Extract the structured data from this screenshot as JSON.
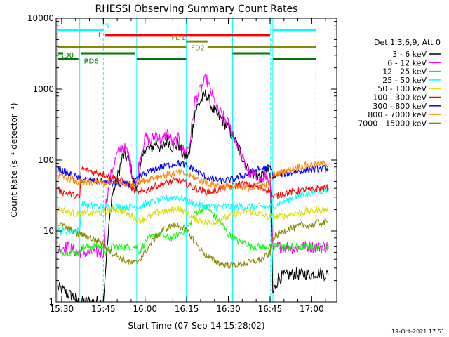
{
  "chart_data": {
    "type": "line",
    "title": "RHESSI Observing Summary Count Rates",
    "xlabel": "Start Time (07-Sep-14 15:28:02)",
    "ylabel": "Count Rate (s⁻¹ detector⁻¹)",
    "y_scale": "log",
    "ylim": [
      1,
      10000
    ],
    "xlim": [
      0,
      101
    ],
    "x_units": "minutes after 15:28:02",
    "x_ticks": [
      {
        "t": 2,
        "label": "15:30"
      },
      {
        "t": 17,
        "label": "15:45"
      },
      {
        "t": 32,
        "label": "16:00"
      },
      {
        "t": 47,
        "label": "16:15"
      },
      {
        "t": 62,
        "label": "16:30"
      },
      {
        "t": 77,
        "label": "16:45"
      },
      {
        "t": 92,
        "label": "17:00"
      }
    ],
    "y_ticks": [
      {
        "v": 1,
        "label": "1"
      },
      {
        "v": 10,
        "label": "10"
      },
      {
        "v": 100,
        "label": "100"
      },
      {
        "v": 1000,
        "label": "1000"
      },
      {
        "v": 10000,
        "label": "10000"
      }
    ],
    "legend": {
      "title": "Det 1,3,6,9, Att 0",
      "placement": "right",
      "entries": [
        {
          "label": "3 - 6 keV",
          "color": "#000000"
        },
        {
          "label": "6 - 12 keV",
          "color": "#ff00ff"
        },
        {
          "label": "12 - 25 keV",
          "color": "#00ff00"
        },
        {
          "label": "25 - 50 keV",
          "color": "#00ffff"
        },
        {
          "label": "50 - 100 keV",
          "color": "#dddd00"
        },
        {
          "label": "100 - 300 keV",
          "color": "#ff0000"
        },
        {
          "label": "300 - 800 keV",
          "color": "#0000ff"
        },
        {
          "label": "800 - 7000 keV",
          "color": "#ff8800"
        },
        {
          "label": "7000 - 15000 keV",
          "color": "#888800"
        }
      ]
    },
    "series": [
      {
        "name": "3 - 6 keV",
        "color": "#000000",
        "x": [
          0.5,
          2,
          4,
          6,
          8,
          8.5,
          9,
          12,
          16,
          17,
          18,
          20,
          22,
          24,
          26,
          28,
          29,
          30,
          32,
          34,
          36,
          38,
          40,
          42,
          44,
          46,
          48,
          50,
          52,
          54,
          56,
          58,
          60,
          62,
          64,
          66,
          68,
          70,
          72,
          74,
          76,
          77,
          78,
          80,
          82,
          84,
          86,
          88,
          90,
          92,
          94,
          96,
          98
        ],
        "y": [
          1.6,
          1.5,
          1.3,
          1.2,
          1.0,
          1.0,
          1.0,
          1.0,
          1.0,
          1.0,
          4,
          30,
          55,
          115,
          105,
          50,
          38,
          65,
          150,
          140,
          180,
          140,
          195,
          150,
          170,
          110,
          120,
          500,
          680,
          870,
          560,
          420,
          360,
          280,
          200,
          140,
          90,
          66,
          62,
          58,
          70,
          60,
          1.3,
          2.2,
          2.3,
          2.4,
          2.5,
          2.4,
          2.5,
          2.4,
          2.6,
          2.5,
          2.4
        ]
      },
      {
        "name": "6 - 12 keV",
        "color": "#ff00ff",
        "x": [
          0.5,
          2,
          4,
          6,
          8,
          8.5,
          9,
          12,
          16,
          17,
          18,
          20,
          22,
          24,
          26,
          28,
          29,
          30,
          32,
          34,
          36,
          38,
          40,
          42,
          44,
          46,
          48,
          50,
          52,
          54,
          56,
          58,
          60,
          62,
          64,
          66,
          68,
          70,
          72,
          74,
          76,
          77,
          78,
          80,
          82,
          84,
          86,
          88,
          90,
          92,
          94,
          96,
          98
        ],
        "y": [
          5.5,
          6,
          6,
          5.5,
          5,
          5.2,
          5,
          5,
          5,
          5,
          25,
          70,
          120,
          160,
          120,
          50,
          45,
          100,
          210,
          180,
          240,
          180,
          250,
          170,
          200,
          130,
          160,
          700,
          1000,
          1400,
          860,
          520,
          420,
          320,
          220,
          140,
          85,
          62,
          58,
          52,
          60,
          50,
          5.5,
          6,
          6,
          6,
          5.5,
          6,
          6,
          6,
          6,
          6,
          6
        ]
      },
      {
        "name": "12 - 25 keV",
        "color": "#00ff00",
        "x": [
          0.5,
          2,
          4,
          6,
          8,
          8.5,
          9,
          12,
          16,
          18,
          20,
          22,
          24,
          26,
          28,
          29,
          30,
          32,
          34,
          36,
          38,
          40,
          42,
          44,
          46,
          48,
          50,
          52,
          54,
          56,
          58,
          60,
          62,
          64,
          66,
          68,
          70,
          72,
          74,
          76,
          77,
          78,
          80,
          82,
          84,
          86,
          88,
          90,
          92,
          94,
          96,
          98
        ],
        "y": [
          5,
          5,
          5,
          5,
          5,
          5,
          6,
          6,
          6,
          5,
          6,
          6,
          6,
          6,
          6,
          6,
          5,
          7,
          8,
          9,
          9,
          8,
          8,
          9,
          10,
          12,
          18,
          20,
          22,
          18,
          15,
          12,
          9,
          8,
          7,
          7,
          6,
          6,
          6,
          6,
          6,
          6,
          6,
          6,
          6,
          6,
          6,
          6,
          6,
          6,
          6,
          6
        ]
      },
      {
        "name": "25 - 50 keV",
        "color": "#00ffff",
        "x": [
          0.5,
          2,
          4,
          6,
          8,
          8.5,
          9,
          12,
          16,
          18,
          20,
          22,
          24,
          26,
          28,
          29,
          30,
          32,
          34,
          36,
          38,
          40,
          42,
          44,
          46,
          48,
          50,
          52,
          54,
          56,
          58,
          60,
          62,
          64,
          66,
          68,
          70,
          72,
          74,
          76,
          77,
          78,
          80,
          82,
          84,
          86,
          88,
          90,
          92,
          94,
          96,
          98
        ],
        "y": [
          10,
          10,
          10,
          10,
          10,
          10,
          24,
          23,
          22,
          22,
          22,
          22,
          22,
          22,
          22,
          22,
          22,
          24,
          25,
          27,
          28,
          29,
          30,
          30,
          28,
          26,
          24,
          23,
          22,
          22,
          22,
          22,
          22,
          22,
          22,
          22,
          22,
          22,
          22,
          22,
          22,
          22,
          24,
          26,
          28,
          30,
          32,
          33,
          35,
          36,
          37,
          37
        ]
      },
      {
        "name": "50 - 100 keV",
        "color": "#dddd00",
        "x": [
          0.5,
          2,
          4,
          6,
          8,
          8.5,
          9,
          12,
          16,
          18,
          20,
          22,
          24,
          26,
          28,
          29,
          30,
          32,
          34,
          36,
          38,
          40,
          42,
          44,
          46,
          48,
          50,
          52,
          54,
          56,
          58,
          60,
          62,
          64,
          66,
          68,
          70,
          72,
          74,
          76,
          77,
          78,
          80,
          82,
          84,
          86,
          88,
          90,
          92,
          94,
          96,
          98
        ],
        "y": [
          21,
          20,
          19,
          18,
          17,
          17,
          17,
          18,
          18,
          19,
          20,
          20,
          19,
          17,
          16,
          14,
          14,
          15,
          16,
          18,
          19,
          19,
          20,
          21,
          19,
          17,
          15,
          14,
          13,
          13,
          14,
          15,
          16,
          17,
          18,
          19,
          19,
          18,
          17,
          16,
          16,
          16,
          16,
          16,
          17,
          18,
          18,
          19,
          19,
          20,
          20,
          20
        ]
      },
      {
        "name": "100 - 300 keV",
        "color": "#ff0000",
        "x": [
          0.5,
          2,
          4,
          6,
          8,
          8.5,
          9,
          12,
          16,
          18,
          20,
          22,
          24,
          26,
          28,
          29,
          30,
          32,
          34,
          36,
          38,
          40,
          42,
          44,
          46,
          48,
          50,
          52,
          54,
          56,
          58,
          60,
          62,
          64,
          66,
          68,
          70,
          72,
          74,
          76,
          77,
          78,
          80,
          82,
          84,
          86,
          88,
          90,
          92,
          94,
          96,
          98
        ],
        "y": [
          38,
          36,
          34,
          32,
          30,
          30,
          75,
          70,
          65,
          62,
          58,
          54,
          50,
          44,
          38,
          36,
          34,
          37,
          40,
          44,
          46,
          48,
          50,
          52,
          48,
          44,
          40,
          38,
          36,
          36,
          38,
          40,
          42,
          44,
          46,
          46,
          44,
          42,
          40,
          38,
          38,
          30,
          32,
          34,
          35,
          36,
          37,
          38,
          38,
          40,
          40,
          40
        ]
      },
      {
        "name": "300 - 800 keV",
        "color": "#0000ff",
        "x": [
          0.5,
          2,
          4,
          6,
          8,
          8.5,
          9,
          12,
          16,
          18,
          20,
          22,
          24,
          26,
          28,
          29,
          30,
          32,
          34,
          36,
          38,
          40,
          42,
          44,
          46,
          48,
          50,
          52,
          54,
          56,
          58,
          60,
          62,
          64,
          66,
          68,
          70,
          72,
          74,
          76,
          77,
          78,
          80,
          82,
          84,
          86,
          88,
          90,
          92,
          94,
          96,
          98
        ],
        "y": [
          78,
          72,
          66,
          60,
          56,
          55,
          54,
          52,
          50,
          48,
          47,
          46,
          45,
          46,
          48,
          52,
          58,
          64,
          70,
          76,
          80,
          84,
          88,
          90,
          86,
          80,
          72,
          64,
          58,
          54,
          52,
          51,
          52,
          54,
          58,
          62,
          68,
          72,
          76,
          78,
          80,
          60,
          62,
          64,
          66,
          68,
          70,
          72,
          74,
          75,
          76,
          76
        ]
      },
      {
        "name": "800 - 7000 keV",
        "color": "#ff8800",
        "x": [
          0.5,
          2,
          4,
          6,
          8,
          8.5,
          9,
          12,
          16,
          18,
          20,
          22,
          24,
          26,
          28,
          29,
          30,
          32,
          34,
          36,
          38,
          40,
          42,
          44,
          46,
          48,
          50,
          52,
          54,
          56,
          58,
          60,
          62,
          64,
          66,
          68,
          70,
          72,
          74,
          76,
          77,
          78,
          80,
          82,
          84,
          86,
          88,
          90,
          92,
          94,
          96,
          98
        ],
        "y": [
          60,
          58,
          55,
          52,
          48,
          47,
          47,
          48,
          48,
          48,
          48,
          47,
          46,
          46,
          46,
          48,
          50,
          52,
          56,
          58,
          60,
          62,
          64,
          66,
          64,
          60,
          56,
          52,
          48,
          46,
          44,
          43,
          42,
          41,
          40,
          40,
          41,
          42,
          44,
          46,
          48,
          62,
          66,
          70,
          74,
          78,
          82,
          84,
          86,
          88,
          88,
          88
        ]
      },
      {
        "name": "7000 - 15000 keV",
        "color": "#888800",
        "x": [
          0.5,
          2,
          4,
          6,
          8,
          8.5,
          9,
          12,
          16,
          18,
          20,
          22,
          24,
          26,
          28,
          29,
          30,
          32,
          34,
          36,
          38,
          40,
          42,
          44,
          46,
          48,
          50,
          52,
          54,
          56,
          58,
          60,
          62,
          64,
          66,
          68,
          70,
          72,
          74,
          76,
          77,
          78,
          80,
          82,
          84,
          86,
          88,
          90,
          92,
          94,
          96,
          98
        ],
        "y": [
          13,
          12,
          11,
          10,
          9,
          9,
          9,
          8,
          7,
          6,
          5,
          4.5,
          4.0,
          3.6,
          3.5,
          3.6,
          4.0,
          5.0,
          6.5,
          8.5,
          10,
          11,
          12,
          12,
          11,
          9,
          7,
          5.5,
          4.5,
          4.0,
          3.6,
          3.4,
          3.3,
          3.3,
          3.4,
          3.5,
          3.6,
          3.8,
          4.0,
          4.5,
          5.0,
          8,
          9,
          10,
          11,
          11,
          12,
          12,
          12,
          13,
          13,
          13
        ]
      }
    ],
    "vertical_markers": [
      {
        "t": 0.5,
        "color": "#00ffff",
        "style": "solid"
      },
      {
        "t": 8.5,
        "color": "#00ffff",
        "style": "solid"
      },
      {
        "t": 17,
        "color": "#00ffff",
        "style": "dashed"
      },
      {
        "t": 29,
        "color": "#00ffff",
        "style": "solid"
      },
      {
        "t": 46.8,
        "color": "#00ffff",
        "style": "solid"
      },
      {
        "t": 63.5,
        "color": "#00ffff",
        "style": "solid"
      },
      {
        "t": 77.2,
        "color": "#00ffff",
        "style": "dashed"
      },
      {
        "t": 78,
        "color": "#00ffff",
        "style": "solid"
      },
      {
        "t": 93.5,
        "color": "#00ffff",
        "style": "dashed"
      }
    ],
    "flag_bars": [
      {
        "label": "N",
        "color": "#00ffff",
        "y": 6800,
        "segments": [
          [
            0.5,
            17
          ],
          [
            78,
            93.5
          ]
        ]
      },
      {
        "label": "F",
        "color": "#ff0000",
        "y": 5800,
        "segments": [
          [
            17.5,
            77
          ]
        ]
      },
      {
        "label": "FD1",
        "color": "#888800",
        "y": 4700,
        "segments": [
          [
            46.8,
            54.5
          ]
        ]
      },
      {
        "label": "FD2",
        "color": "#888800",
        "y": 3950,
        "segments": [
          [
            0.5,
            46.8
          ],
          [
            54.5,
            93.5
          ]
        ]
      },
      {
        "label": "RD0",
        "color": "#007700",
        "y": 3200,
        "segments": [
          [
            0.5,
            2.5
          ],
          [
            9,
            28.5
          ],
          [
            63.5,
            77
          ]
        ]
      },
      {
        "label": "RD6",
        "color": "#007700",
        "y": 2650,
        "segments": [
          [
            0.5,
            8
          ],
          [
            29,
            46.8
          ],
          [
            78,
            93.5
          ]
        ]
      }
    ],
    "timestamp": "19-Oct-2021 17:51"
  }
}
